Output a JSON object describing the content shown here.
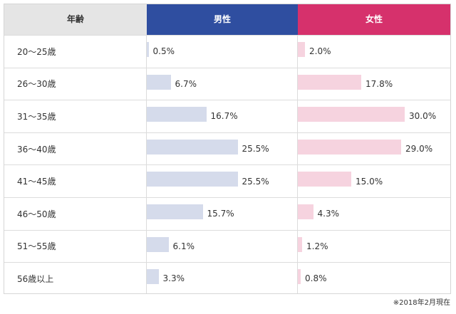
{
  "chart_data": {
    "type": "bar",
    "headers": {
      "age": "年齢",
      "male": "男性",
      "female": "女性"
    },
    "categories": [
      "20〜25歳",
      "26〜30歳",
      "31〜35歳",
      "36〜40歳",
      "41〜45歳",
      "46〜50歳",
      "51〜55歳",
      "56歳以上"
    ],
    "series": [
      {
        "name": "男性",
        "values": [
          0.5,
          6.7,
          16.7,
          25.5,
          25.5,
          15.7,
          6.1,
          3.3
        ],
        "labels": [
          "0.5%",
          "6.7%",
          "16.7%",
          "25.5%",
          "25.5%",
          "15.7%",
          "6.1%",
          "3.3%"
        ]
      },
      {
        "name": "女性",
        "values": [
          2.0,
          17.8,
          30.0,
          29.0,
          15.0,
          4.3,
          1.2,
          0.8
        ],
        "labels": [
          "2.0%",
          "17.8%",
          "30.0%",
          "29.0%",
          "15.0%",
          "4.3%",
          "1.2%",
          "0.8%"
        ]
      }
    ],
    "ylim": [
      0,
      30
    ],
    "colors": {
      "male_header": "#2f4ea0",
      "female_header": "#d6316c",
      "male_bar": "#d5dbeb",
      "female_bar": "#f6d3df"
    }
  },
  "note": "※2018年2月現在"
}
